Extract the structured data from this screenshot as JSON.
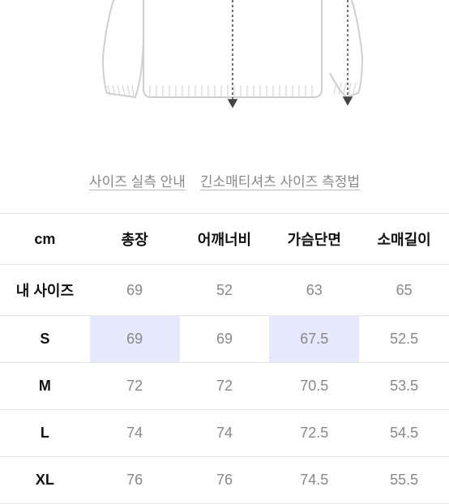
{
  "diagram": {
    "outline_color": "#cfcfcf",
    "dash_color": "#444444",
    "ticks_color": "#bfbfbf",
    "background": "#ffffff"
  },
  "links": {
    "size_guide": "사이즈 실측 안내",
    "measure_method": "긴소매티셔츠 사이즈 측정법",
    "link_color": "#888888"
  },
  "table": {
    "unit": "cm",
    "header_color": "#111111",
    "cell_color": "#888888",
    "row_head_color": "#111111",
    "border_color": "#e5e5e5",
    "highlight_bg": "#e6e8fb",
    "columns": [
      "cm",
      "총장",
      "어깨너비",
      "가슴단면",
      "소매길이"
    ],
    "rows": [
      {
        "label": "내 사이즈",
        "values": [
          "69",
          "52",
          "63",
          "65"
        ],
        "highlight": []
      },
      {
        "label": "S",
        "values": [
          "69",
          "69",
          "67.5",
          "52.5"
        ],
        "highlight": [
          0,
          2
        ]
      },
      {
        "label": "M",
        "values": [
          "72",
          "72",
          "70.5",
          "53.5"
        ],
        "highlight": []
      },
      {
        "label": "L",
        "values": [
          "74",
          "74",
          "72.5",
          "54.5"
        ],
        "highlight": []
      },
      {
        "label": "XL",
        "values": [
          "76",
          "76",
          "74.5",
          "55.5"
        ],
        "highlight": []
      }
    ]
  }
}
